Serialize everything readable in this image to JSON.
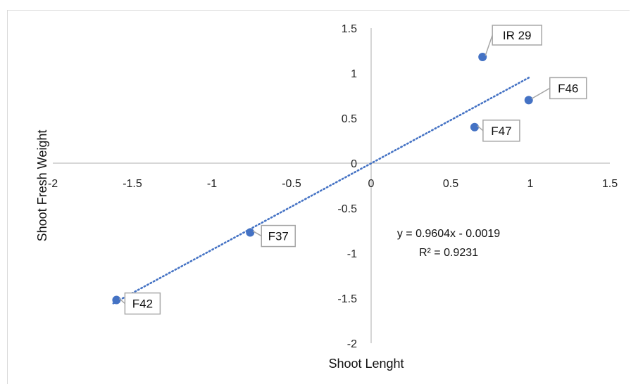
{
  "chart_data": {
    "type": "scatter",
    "xlabel": "Shoot Lenght",
    "ylabel": "Shoot Fresh Weight",
    "xlim": [
      -2,
      1.5
    ],
    "ylim": [
      -2,
      1.5
    ],
    "x_ticks": [
      "-2",
      "-1.5",
      "-1",
      "-0.5",
      "0",
      "0.5",
      "1",
      "1.5"
    ],
    "y_ticks": [
      "1.5",
      "1",
      "0.5",
      "0",
      "-0.5",
      "-1",
      "-1.5",
      "-2"
    ],
    "grid": false,
    "series": [
      {
        "points": [
          {
            "label": "IR 29",
            "x": 0.7,
            "y": 1.18
          },
          {
            "label": "F46",
            "x": 0.99,
            "y": 0.7
          },
          {
            "label": "F47",
            "x": 0.65,
            "y": 0.4
          },
          {
            "label": "F37",
            "x": -0.76,
            "y": -0.77
          },
          {
            "label": "F42",
            "x": -1.6,
            "y": -1.52
          }
        ]
      }
    ],
    "trendline": {
      "type": "linear",
      "slope": 0.9604,
      "intercept": -0.0019,
      "x_range": [
        -1.6,
        0.99
      ],
      "equation": "y = 0.9604x - 0.0019",
      "r_squared": "R² = 0.9231"
    },
    "colors": {
      "marker": "#4472C4",
      "trendline": "#4472C4",
      "axis": "#bfbfbf",
      "label_border": "#a6a6a6"
    }
  }
}
